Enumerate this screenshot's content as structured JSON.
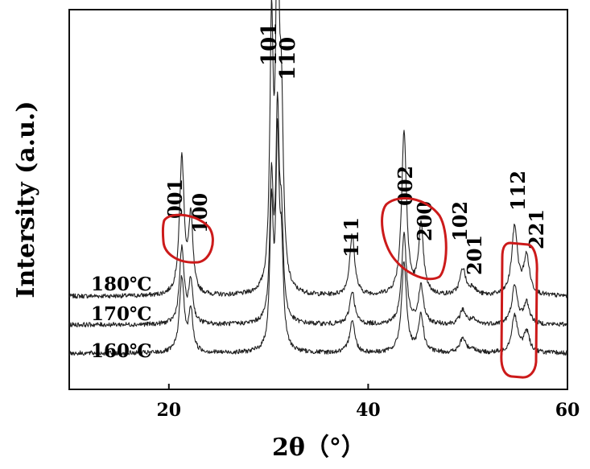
{
  "chart_data": {
    "type": "line",
    "title": "",
    "xlabel": "2θ（°）",
    "ylabel": "Intersity (a.u.)",
    "xlim": [
      10,
      60
    ],
    "x_ticks": [
      20,
      40,
      60
    ],
    "y_ticks_shown": false,
    "grid": false,
    "legend": "none (series labels written at left of each trace)",
    "background_noise": 0.012,
    "series": [
      {
        "name": "180℃",
        "baseline": 0.245,
        "scale": 1.0
      },
      {
        "name": "170℃",
        "baseline": 0.17,
        "scale": 0.55
      },
      {
        "name": "160℃",
        "baseline": 0.095,
        "scale": 0.55
      }
    ],
    "peaks": [
      {
        "label": "001",
        "x": 21.3,
        "height": 0.36,
        "width": 0.28
      },
      {
        "label": "100",
        "x": 22.2,
        "height": 0.2,
        "width": 0.25
      },
      {
        "label": "",
        "x": 30.3,
        "height": 0.67,
        "width": 0.2
      },
      {
        "label": "101",
        "x": 30.9,
        "height": 0.96,
        "width": 0.2
      },
      {
        "label": "110",
        "x": 31.3,
        "height": 0.42,
        "width": 0.22
      },
      {
        "label": "111",
        "x": 38.4,
        "height": 0.16,
        "width": 0.3
      },
      {
        "label": "002",
        "x": 43.6,
        "height": 0.43,
        "width": 0.3
      },
      {
        "label": "200",
        "x": 45.3,
        "height": 0.18,
        "width": 0.3
      },
      {
        "label": "102",
        "x": 49.5,
        "height": 0.07,
        "width": 0.35
      },
      {
        "label": "201",
        "x": 50.5,
        "height": 0.02,
        "width": 0.35
      },
      {
        "label": "112",
        "x": 54.7,
        "height": 0.18,
        "width": 0.35
      },
      {
        "label": "221",
        "x": 55.9,
        "height": 0.1,
        "width": 0.35
      }
    ],
    "annotations": [
      "001",
      "100",
      "101",
      "110",
      "111",
      "002",
      "200",
      "102",
      "201",
      "112",
      "221"
    ],
    "highlight_color": "#cc1a1a",
    "line_color": "#222222"
  }
}
